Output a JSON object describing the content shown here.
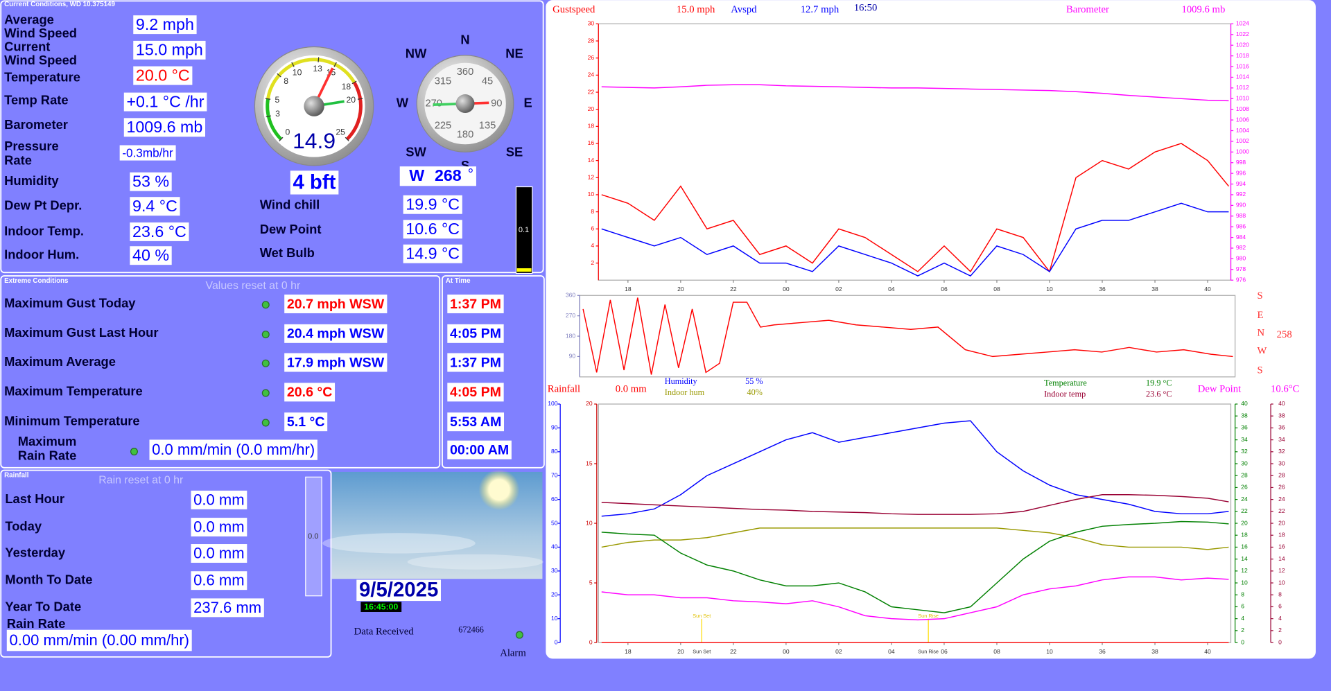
{
  "current_conditions": {
    "title": "Current Conditions, WD 10.375149",
    "left_rows": [
      {
        "label": [
          "Average",
          "Wind Speed"
        ],
        "value": "9.2 mph"
      },
      {
        "label": [
          "Current",
          "Wind Speed"
        ],
        "value": "15.0 mph"
      },
      {
        "label": [
          "Temperature"
        ],
        "value": "20.0 °C",
        "color": "#ff0000"
      },
      {
        "label": [
          "Temp Rate"
        ],
        "value": "+0.1 °C /hr"
      },
      {
        "label": [
          "Barometer"
        ],
        "value": "1009.6 mb"
      },
      {
        "label": [
          "Pressure",
          "Rate"
        ],
        "value": "-0.3mb/hr"
      },
      {
        "label": [
          "Humidity"
        ],
        "value": "53 %"
      },
      {
        "label": [
          "Dew Pt Depr."
        ],
        "value": "9.4 °C"
      },
      {
        "label": [
          "Indoor Temp."
        ],
        "value": "23.6 °C"
      },
      {
        "label": [
          "Indoor Hum."
        ],
        "value": "40 %"
      }
    ],
    "mid_rows": [
      {
        "label": "Wind chill",
        "value": "19.9 °C"
      },
      {
        "label": "Dew Point",
        "value": "10.6 °C"
      },
      {
        "label": "Wet Bulb",
        "value": "14.9 °C"
      }
    ],
    "beaufort": "4 bft",
    "speed_gauge": {
      "range": [
        0,
        25
      ],
      "ticks": [
        0,
        3,
        5,
        8,
        10,
        13,
        15,
        18,
        20,
        25
      ],
      "reading": 14.9,
      "gust_needle": 20
    },
    "compass": {
      "points": [
        "N",
        "NE",
        "E",
        "SE",
        "S",
        "SW",
        "W",
        "NW"
      ],
      "degrees": [
        {
          "value": 0,
          "label": "360"
        },
        45,
        90,
        135,
        180,
        225,
        270,
        315
      ],
      "direction": "W",
      "bearing": 268,
      "unit": "°"
    },
    "rain_bar": "0.1"
  },
  "extreme_conditions": {
    "title": "Extreme Conditions",
    "note": "Values reset at 0 hr",
    "time_title": "At Time",
    "rows": [
      {
        "label": [
          "Maximum Gust Today"
        ],
        "value": "20.7 mph WSW",
        "time": "1:37 PM",
        "color": "#ff0000"
      },
      {
        "label": [
          "Maximum Gust Last Hour"
        ],
        "value": "20.4 mph WSW",
        "time": "4:05 PM"
      },
      {
        "label": [
          "Maximum Average"
        ],
        "value": "17.9 mph WSW",
        "time": "1:37 PM"
      },
      {
        "label": [
          "Maximum Temperature"
        ],
        "value": "20.6 °C",
        "time": "4:05 PM",
        "color": "#ff0000"
      },
      {
        "label": [
          "Minimum Temperature"
        ],
        "value": "5.1 °C",
        "time": "5:53 AM"
      },
      {
        "label": [
          "Maximum",
          "Rain Rate"
        ],
        "value": "0.0 mm/min (0.0 mm/hr)",
        "time": "00:00 AM"
      }
    ]
  },
  "rainfall": {
    "title": "Rainfall",
    "note": "Rain reset at 0 hr",
    "rows": [
      {
        "label": "Last Hour",
        "value": "0.0 mm"
      },
      {
        "label": "Today",
        "value": "0.0 mm"
      },
      {
        "label": "Yesterday",
        "value": "0.0 mm"
      },
      {
        "label": "Month To Date",
        "value": "0.6 mm"
      },
      {
        "label": "Year To Date",
        "value": "237.6 mm"
      }
    ],
    "rate_label": "Rain Rate",
    "rate": "0.00 mm/min (0.00 mm/hr)",
    "gauge": "0.0"
  },
  "status": {
    "date": "9/5/2025",
    "time": "16:45:00",
    "received_label": "Data Received",
    "received": "672466",
    "alarm": "Alarm"
  },
  "charts": [
    {
      "type": "line",
      "time": "16:50",
      "xlim": [
        16.88,
        40.88
      ],
      "xticks": [
        18,
        20,
        22,
        {
          "value": 24,
          "label": "00"
        },
        {
          "value": 26,
          "label": "02"
        },
        {
          "value": 28,
          "label": "04"
        },
        {
          "value": 30,
          "label": "06"
        },
        {
          "value": 32,
          "label": "08"
        },
        {
          "value": 34,
          "label": "10"
        },
        36,
        38,
        40
      ],
      "axes": [
        {
          "lim": [
            0,
            30
          ],
          "ticks": [
            2,
            4,
            6,
            8,
            10,
            12,
            14,
            16,
            18,
            20,
            22,
            24,
            26,
            28,
            30
          ],
          "color": "#ff0000"
        },
        {
          "lim": [
            976,
            1024
          ],
          "ticks": [
            976,
            978,
            980,
            982,
            984,
            986,
            988,
            990,
            992,
            994,
            996,
            998,
            1000,
            1002,
            1004,
            1006,
            1008,
            1010,
            1012,
            1014,
            1016,
            1018,
            1020,
            1022,
            1024
          ],
          "color": "#ff00ff"
        }
      ],
      "x": [
        17,
        18,
        19,
        20,
        21,
        22,
        23,
        24,
        25,
        26,
        27,
        28,
        29,
        30,
        31,
        32,
        33,
        34,
        35,
        36,
        37,
        38,
        39,
        40,
        40.8
      ],
      "series": [
        {
          "name": "Gustspeed",
          "reading": "15.0 mph",
          "color": "#ff0000",
          "axis": 0,
          "values": [
            10,
            9,
            7,
            11,
            6,
            7,
            3,
            4,
            2,
            6,
            5,
            3,
            1,
            4,
            1,
            6,
            5,
            1,
            12,
            14,
            13,
            15,
            16,
            14,
            11
          ]
        },
        {
          "name": "Avspd",
          "reading": "12.7 mph",
          "color": "#0000ff",
          "axis": 0,
          "values": [
            6,
            5,
            4,
            5,
            3,
            4,
            2,
            2,
            1,
            4,
            3,
            2,
            0.5,
            2,
            0.5,
            4,
            3,
            1,
            6,
            7,
            7,
            8,
            9,
            8,
            8
          ]
        },
        {
          "name": "Barometer",
          "reading": "1009.6 mb",
          "color": "#ff00ff",
          "axis": 1,
          "values": [
            1012.2,
            1012.1,
            1012.0,
            1012.2,
            1012.5,
            1012.6,
            1012.6,
            1012.4,
            1012.3,
            1012.2,
            1012.1,
            1012.0,
            1012.0,
            1011.9,
            1011.8,
            1011.7,
            1011.6,
            1011.5,
            1011.3,
            1011.0,
            1010.6,
            1010.3,
            1010.0,
            1009.7,
            1009.6
          ]
        }
      ]
    },
    {
      "type": "line",
      "xlim": [
        16.88,
        40.88
      ],
      "xticks": [],
      "axes": [
        {
          "lim": [
            0,
            360
          ],
          "ticks": [
            90,
            180,
            270,
            360
          ],
          "color": "#8080c0"
        }
      ],
      "compass_labels": [
        "S",
        "E",
        "N",
        "W",
        "S"
      ],
      "reading": 258,
      "x": [
        17,
        17.5,
        18,
        18.5,
        19,
        19.5,
        20,
        20.5,
        21,
        21.5,
        22,
        22.5,
        23,
        23.5,
        24,
        25,
        26,
        27,
        28,
        29,
        30,
        31,
        32,
        33,
        34,
        35,
        36,
        37,
        38,
        39,
        40,
        40.8
      ],
      "series": [
        {
          "color": "#ff0000",
          "axis": 0,
          "values": [
            300,
            20,
            340,
            30,
            350,
            10,
            320,
            40,
            300,
            20,
            60,
            330,
            330,
            220,
            230,
            240,
            250,
            230,
            220,
            210,
            220,
            120,
            90,
            100,
            110,
            120,
            110,
            130,
            110,
            120,
            100,
            90
          ]
        }
      ]
    },
    {
      "type": "line",
      "xlim": [
        16.88,
        40.88
      ],
      "xticks": [
        18,
        20,
        22,
        {
          "value": 24,
          "label": "00"
        },
        {
          "value": 26,
          "label": "02"
        },
        {
          "value": 28,
          "label": "04"
        },
        {
          "value": 30,
          "label": "06"
        },
        {
          "value": 32,
          "label": "08"
        },
        {
          "value": 34,
          "label": "10"
        },
        36,
        38,
        40
      ],
      "events": [
        {
          "value": 20.8,
          "label": "Sun Set"
        },
        {
          "value": 29.4,
          "label": "Sun Rise"
        }
      ],
      "axes": [
        {
          "lim": [
            0,
            100
          ],
          "ticks": [
            0,
            10,
            20,
            30,
            40,
            50,
            60,
            70,
            80,
            90,
            100
          ],
          "color": "#0000ff"
        },
        {
          "lim": [
            0,
            20
          ],
          "ticks": [
            0,
            5,
            10,
            15,
            20
          ],
          "color": "#cc0000"
        },
        {
          "lim": [
            0,
            40
          ],
          "ticks": [
            0,
            2,
            4,
            6,
            8,
            10,
            12,
            14,
            16,
            18,
            20,
            22,
            24,
            26,
            28,
            30,
            32,
            34,
            36,
            38,
            40
          ],
          "color": "#008000"
        },
        {
          "lim": [
            0,
            40
          ],
          "ticks": [
            0,
            2,
            4,
            6,
            8,
            10,
            12,
            14,
            16,
            18,
            20,
            22,
            24,
            26,
            28,
            30,
            32,
            34,
            36,
            38,
            40
          ],
          "color": "#990033"
        }
      ],
      "x": [
        17,
        18,
        19,
        20,
        21,
        22,
        23,
        24,
        25,
        26,
        27,
        28,
        29,
        30,
        31,
        32,
        33,
        34,
        35,
        36,
        37,
        38,
        39,
        40,
        40.8
      ],
      "series": [
        {
          "name": "Rainfall",
          "reading": "0.0 mm",
          "color": "#ff0000",
          "axis": 1,
          "values": [
            0,
            0,
            0,
            0,
            0,
            0,
            0,
            0,
            0,
            0,
            0,
            0,
            0,
            0,
            0,
            0,
            0,
            0,
            0,
            0,
            0,
            0,
            0,
            0,
            0
          ]
        },
        {
          "name": "Humidity",
          "reading": "55 %",
          "color": "#0000ff",
          "axis": 0,
          "values": [
            53,
            54,
            56,
            62,
            70,
            75,
            80,
            85,
            88,
            84,
            86,
            88,
            90,
            92,
            93,
            80,
            72,
            66,
            62,
            60,
            58,
            55,
            54,
            54,
            55
          ]
        },
        {
          "name": "Indoor hum",
          "reading": "40%",
          "color": "#999900",
          "axis": 0,
          "values": [
            40,
            42,
            43,
            43,
            44,
            46,
            48,
            48,
            48,
            48,
            48,
            48,
            48,
            48,
            48,
            48,
            47,
            46,
            44,
            41,
            40,
            40,
            40,
            39,
            40
          ]
        },
        {
          "name": "Temperature",
          "reading": "19.9 °C",
          "color": "#008000",
          "axis": 2,
          "values": [
            18.5,
            18.2,
            18,
            15,
            13,
            12,
            10.5,
            9.5,
            9.5,
            10,
            8.5,
            6,
            5.5,
            5,
            6,
            10,
            14,
            17,
            18.5,
            19.5,
            19.8,
            20,
            20.3,
            20.2,
            19.9
          ]
        },
        {
          "name": "Indoor temp",
          "reading": "23.6 °C",
          "color": "#990033",
          "axis": 3,
          "values": [
            23.5,
            23.3,
            23.1,
            22.9,
            22.7,
            22.5,
            22.3,
            22.2,
            22.0,
            21.9,
            21.8,
            21.6,
            21.5,
            21.5,
            21.5,
            21.6,
            22.0,
            23.0,
            24.0,
            24.8,
            24.8,
            24.7,
            24.5,
            24.2,
            23.6
          ]
        },
        {
          "name": "Dew Point",
          "reading": "10.6°C",
          "color": "#ff00ff",
          "axis": 3,
          "values": [
            8.5,
            8,
            8,
            7.5,
            7.5,
            7,
            6.8,
            6.5,
            7,
            6,
            4.5,
            4,
            3.8,
            4,
            5,
            6,
            8,
            9,
            9.5,
            10.5,
            11,
            11,
            10.5,
            10.8,
            10.6
          ]
        }
      ]
    }
  ]
}
